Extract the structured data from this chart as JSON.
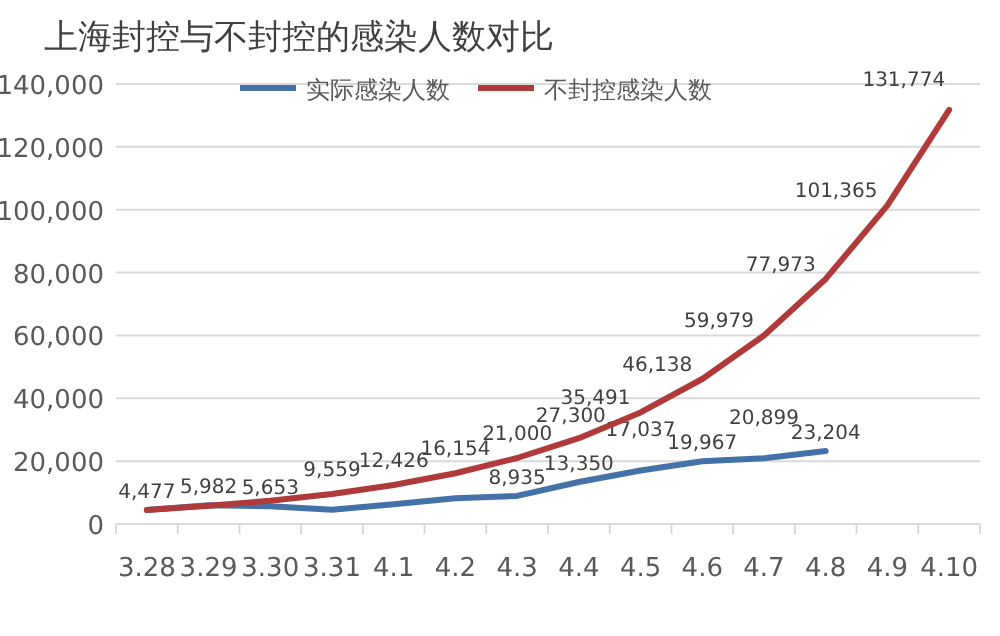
{
  "chart_data": {
    "type": "line",
    "title": "上海封控与不封控的感染人数对比",
    "categories": [
      "3.28",
      "3.29",
      "3.30",
      "3.31",
      "4.1",
      "4.2",
      "4.3",
      "4.4",
      "4.5",
      "4.6",
      "4.7",
      "4.8",
      "4.9",
      "4.10"
    ],
    "series": [
      {
        "name": "实际感染人数",
        "color": "#4472a8",
        "values": [
          4477,
          5982,
          5653,
          4500,
          6300,
          8200,
          8935,
          13350,
          17037,
          19967,
          20899,
          23204,
          null,
          null
        ],
        "value_labels": [
          "4,477",
          "5,982",
          "5,653",
          null,
          null,
          null,
          "8,935",
          "13,350",
          "17,037",
          "19,967",
          "20,899",
          "23,204",
          null,
          null
        ]
      },
      {
        "name": "不封控感染人数",
        "color": "#b03a3a",
        "values": [
          4477,
          5800,
          7400,
          9559,
          12426,
          16154,
          21000,
          27300,
          35491,
          46138,
          59979,
          77973,
          101365,
          131774
        ],
        "value_labels": [
          null,
          null,
          null,
          "9,559",
          "12,426",
          "16,154",
          "21,000",
          "27,300",
          "35,491",
          "46,138",
          "59,979",
          "77,973",
          "101,365",
          "131,774"
        ]
      }
    ],
    "ylim": [
      0,
      140000
    ],
    "yticks": [
      {
        "value": 0,
        "label": "0"
      },
      {
        "value": 20000,
        "label": "20,000"
      },
      {
        "value": 40000,
        "label": "40,000"
      },
      {
        "value": 60000,
        "label": "60,000"
      },
      {
        "value": 80000,
        "label": "80,000"
      },
      {
        "value": 100000,
        "label": "100,000"
      },
      {
        "value": 120000,
        "label": "120,000"
      },
      {
        "value": 140000,
        "label": "140,000"
      }
    ],
    "grid": "y",
    "legend": "top",
    "marker": "none",
    "line_style": "solid"
  }
}
